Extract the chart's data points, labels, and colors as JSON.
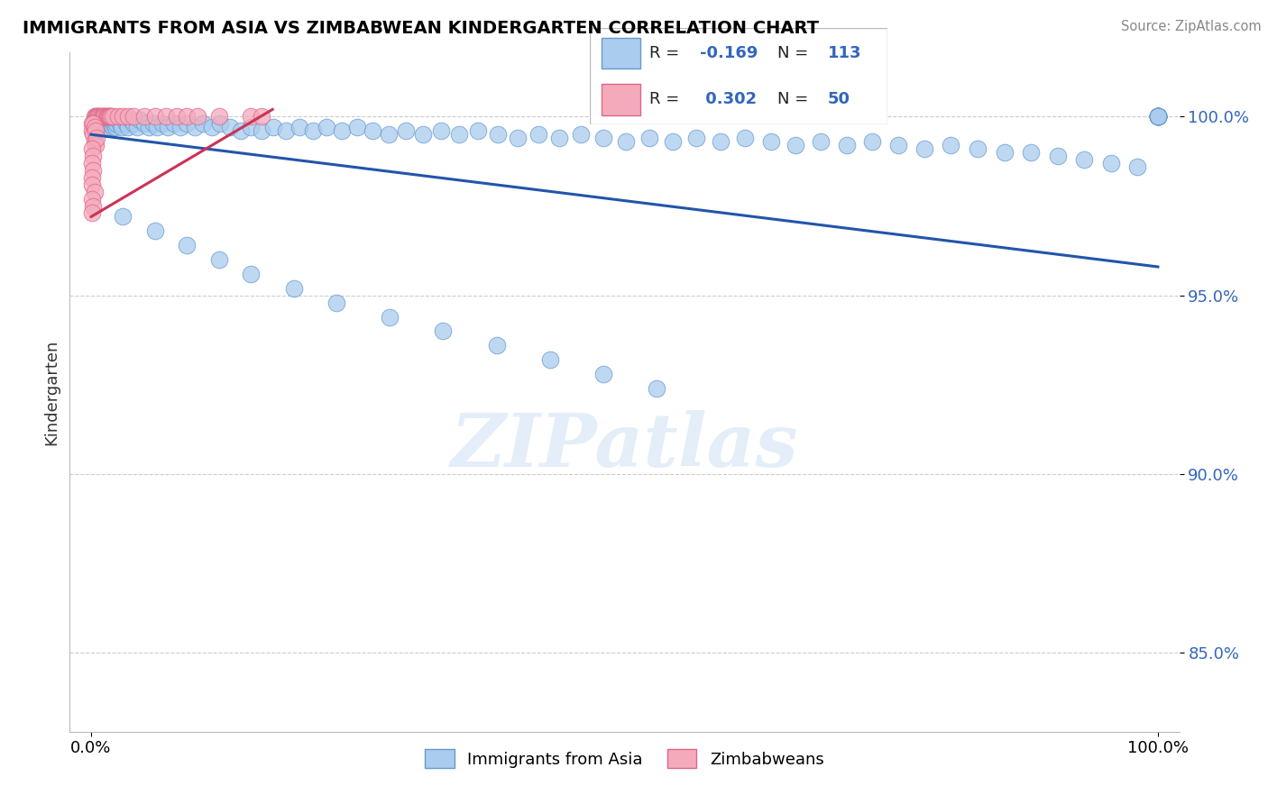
{
  "title": "IMMIGRANTS FROM ASIA VS ZIMBABWEAN KINDERGARTEN CORRELATION CHART",
  "source": "Source: ZipAtlas.com",
  "ylabel": "Kindergarten",
  "ytick_values": [
    0.85,
    0.9,
    0.95,
    1.0
  ],
  "xlim": [
    -0.02,
    1.02
  ],
  "ylim": [
    0.828,
    1.018
  ],
  "legend_r_blue": "-0.169",
  "legend_n_blue": "113",
  "legend_r_pink": "0.302",
  "legend_n_pink": "50",
  "blue_color": "#aaccee",
  "blue_edge": "#6699cc",
  "blue_line_color": "#2255aa",
  "pink_color": "#f5aabc",
  "pink_edge": "#dd6688",
  "pink_line_color": "#cc3355",
  "watermark": "ZIPatlas",
  "blue_line_x": [
    0.0,
    1.0
  ],
  "blue_line_y": [
    0.995,
    0.958
  ],
  "pink_line_x": [
    0.0,
    0.17
  ],
  "pink_line_y": [
    0.972,
    1.002
  ],
  "blue_x": [
    0.005,
    0.006,
    0.007,
    0.008,
    0.009,
    0.01,
    0.011,
    0.012,
    0.013,
    0.014,
    0.015,
    0.016,
    0.017,
    0.018,
    0.019,
    0.02,
    0.021,
    0.022,
    0.023,
    0.024,
    0.025,
    0.027,
    0.029,
    0.031,
    0.033,
    0.035,
    0.037,
    0.04,
    0.043,
    0.046,
    0.05,
    0.054,
    0.058,
    0.062,
    0.067,
    0.072,
    0.078,
    0.084,
    0.09,
    0.097,
    0.105,
    0.113,
    0.121,
    0.13,
    0.14,
    0.15,
    0.16,
    0.171,
    0.183,
    0.195,
    0.208,
    0.221,
    0.235,
    0.249,
    0.264,
    0.279,
    0.295,
    0.311,
    0.328,
    0.345,
    0.363,
    0.381,
    0.4,
    0.419,
    0.439,
    0.459,
    0.48,
    0.501,
    0.523,
    0.545,
    0.567,
    0.59,
    0.613,
    0.637,
    0.66,
    0.684,
    0.708,
    0.732,
    0.757,
    0.781,
    0.806,
    0.831,
    0.856,
    0.881,
    0.906,
    0.931,
    0.956,
    0.981,
    1.0,
    1.0,
    1.0,
    1.0,
    1.0,
    1.0,
    1.0,
    1.0,
    1.0,
    1.0,
    1.0,
    1.0,
    0.03,
    0.06,
    0.09,
    0.12,
    0.15,
    0.19,
    0.23,
    0.28,
    0.33,
    0.38,
    0.43,
    0.48,
    0.53
  ],
  "blue_y": [
    0.996,
    0.997,
    0.998,
    0.999,
    0.998,
    0.997,
    0.999,
    0.998,
    0.997,
    0.999,
    0.998,
    0.997,
    0.999,
    0.998,
    0.999,
    0.997,
    0.998,
    0.999,
    0.997,
    0.998,
    0.999,
    0.998,
    0.997,
    0.999,
    0.998,
    0.997,
    0.999,
    0.998,
    0.997,
    0.999,
    0.998,
    0.997,
    0.998,
    0.997,
    0.998,
    0.997,
    0.998,
    0.997,
    0.998,
    0.997,
    0.998,
    0.997,
    0.998,
    0.997,
    0.996,
    0.997,
    0.996,
    0.997,
    0.996,
    0.997,
    0.996,
    0.997,
    0.996,
    0.997,
    0.996,
    0.995,
    0.996,
    0.995,
    0.996,
    0.995,
    0.996,
    0.995,
    0.994,
    0.995,
    0.994,
    0.995,
    0.994,
    0.993,
    0.994,
    0.993,
    0.994,
    0.993,
    0.994,
    0.993,
    0.992,
    0.993,
    0.992,
    0.993,
    0.992,
    0.991,
    0.992,
    0.991,
    0.99,
    0.99,
    0.989,
    0.988,
    0.987,
    0.986,
    1.0,
    1.0,
    1.0,
    1.0,
    1.0,
    1.0,
    1.0,
    1.0,
    1.0,
    1.0,
    1.0,
    1.0,
    0.972,
    0.968,
    0.964,
    0.96,
    0.956,
    0.952,
    0.948,
    0.944,
    0.94,
    0.936,
    0.932,
    0.928,
    0.924
  ],
  "pink_x": [
    0.003,
    0.004,
    0.005,
    0.006,
    0.007,
    0.008,
    0.009,
    0.01,
    0.011,
    0.012,
    0.013,
    0.014,
    0.015,
    0.016,
    0.017,
    0.018,
    0.019,
    0.02,
    0.025,
    0.03,
    0.035,
    0.04,
    0.05,
    0.06,
    0.07,
    0.08,
    0.09,
    0.1,
    0.12,
    0.15,
    0.16,
    0.001,
    0.001,
    0.002,
    0.002,
    0.003,
    0.003,
    0.004,
    0.004,
    0.005,
    0.001,
    0.002,
    0.001,
    0.002,
    0.001,
    0.001,
    0.003,
    0.001,
    0.002,
    0.001
  ],
  "pink_y": [
    1.0,
    1.0,
    1.0,
    1.0,
    1.0,
    1.0,
    1.0,
    1.0,
    1.0,
    1.0,
    1.0,
    1.0,
    1.0,
    1.0,
    1.0,
    1.0,
    1.0,
    1.0,
    1.0,
    1.0,
    1.0,
    1.0,
    1.0,
    1.0,
    1.0,
    1.0,
    1.0,
    1.0,
    1.0,
    1.0,
    1.0,
    0.998,
    0.996,
    0.998,
    0.995,
    0.997,
    0.993,
    0.996,
    0.992,
    0.994,
    0.991,
    0.989,
    0.987,
    0.985,
    0.983,
    0.981,
    0.979,
    0.977,
    0.975,
    0.973
  ]
}
